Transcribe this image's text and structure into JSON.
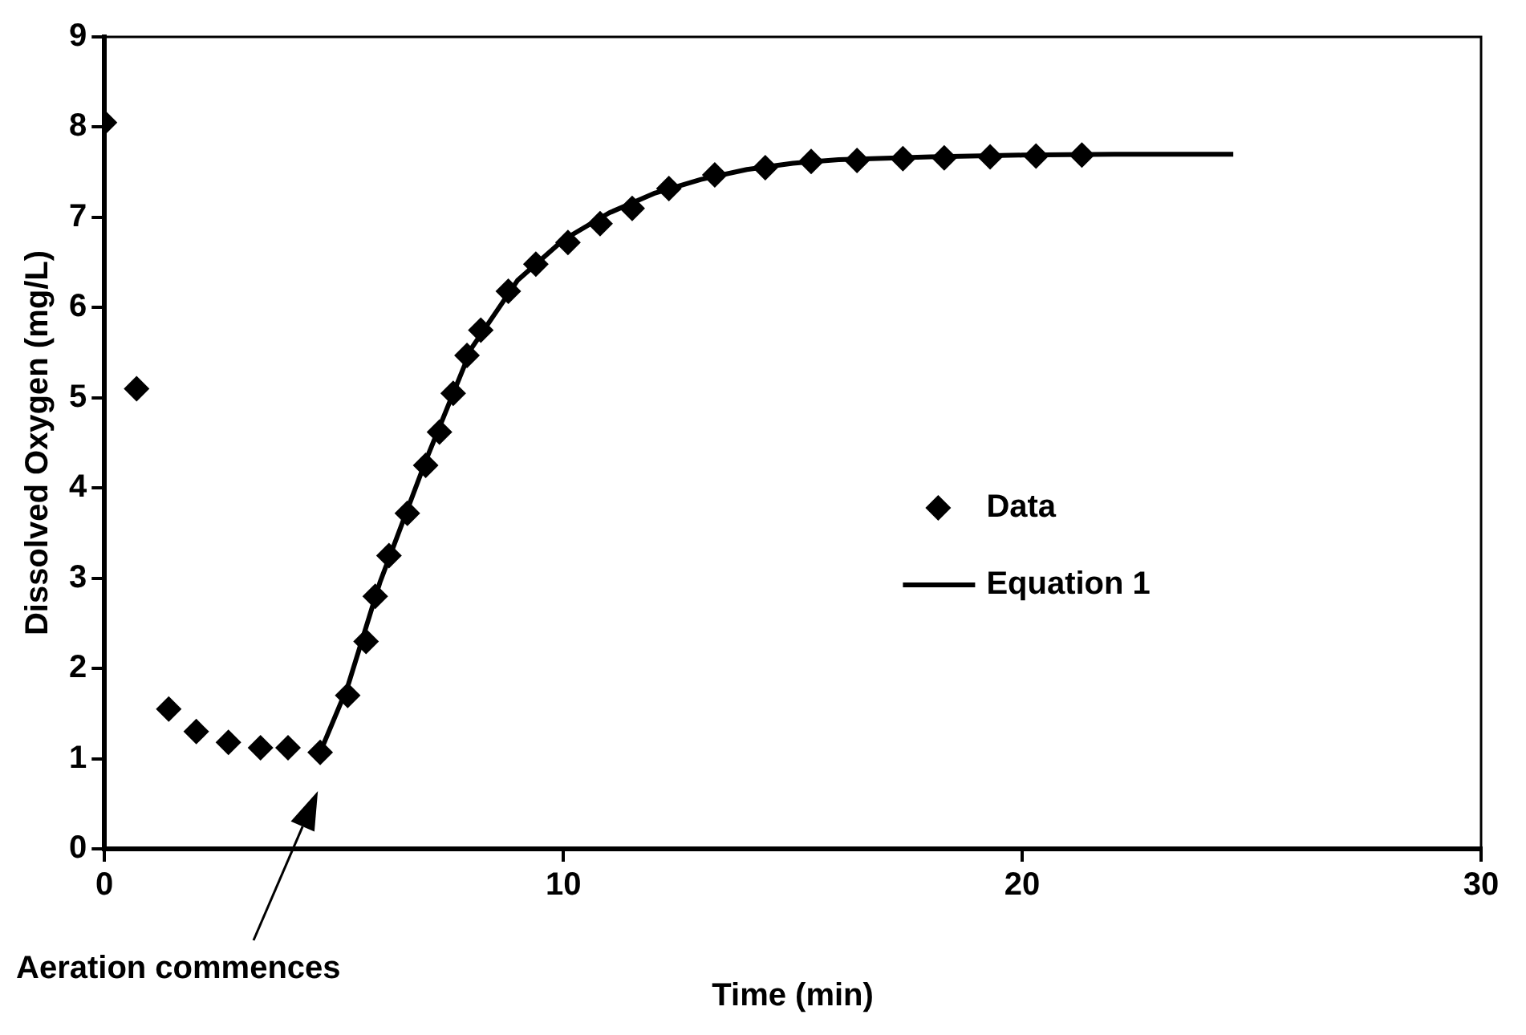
{
  "chart_data": {
    "type": "scatter",
    "xlabel": "Time (min)",
    "ylabel": "Dissolved Oxygen (mg/L)",
    "xlim": [
      0,
      30
    ],
    "xticks": [
      0,
      10,
      20,
      30
    ],
    "ylim": [
      0,
      9
    ],
    "yticks": [
      0,
      1,
      2,
      3,
      4,
      5,
      6,
      7,
      8,
      9
    ],
    "grid": false,
    "legend": "right",
    "marker": "diamond",
    "series": [
      {
        "name": "Data",
        "type": "scatter",
        "color": "#000000",
        "x": [
          0,
          0.7,
          1.4,
          2.0,
          2.7,
          3.4,
          4.0,
          4.7,
          5.3,
          5.7,
          5.9,
          6.2,
          6.6,
          7.0,
          7.3,
          7.6,
          7.9,
          8.2,
          8.8,
          9.4,
          10.1,
          10.8,
          11.5,
          12.3,
          13.3,
          14.4,
          15.4,
          16.4,
          17.4,
          18.3,
          19.3,
          20.3,
          21.3
        ],
        "values": [
          8.05,
          5.1,
          1.55,
          1.3,
          1.18,
          1.12,
          1.12,
          1.07,
          1.7,
          2.3,
          2.8,
          3.25,
          3.72,
          4.25,
          4.62,
          5.05,
          5.47,
          5.75,
          6.18,
          6.48,
          6.72,
          6.93,
          7.1,
          7.32,
          7.47,
          7.55,
          7.62,
          7.63,
          7.65,
          7.66,
          7.67,
          7.68,
          7.69
        ]
      },
      {
        "name": "Equation 1",
        "type": "line",
        "color": "#000000",
        "marker": "none",
        "line_style": "solid",
        "x": [
          4.7,
          5.3,
          6,
          7,
          8,
          9,
          10,
          11,
          12,
          13,
          14,
          15,
          16,
          18,
          20,
          22,
          24.6
        ],
        "values": [
          1.07,
          1.8,
          2.95,
          4.3,
          5.55,
          6.3,
          6.75,
          7.05,
          7.27,
          7.42,
          7.53,
          7.6,
          7.64,
          7.67,
          7.69,
          7.7,
          7.7
        ]
      }
    ],
    "annotations": [
      "Aeration commences"
    ]
  }
}
